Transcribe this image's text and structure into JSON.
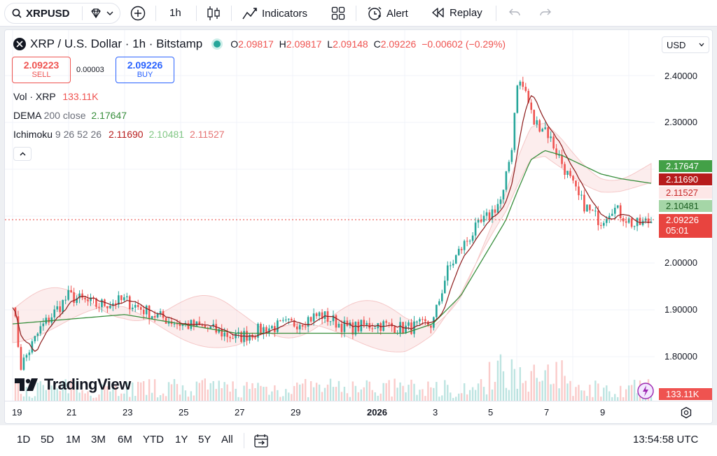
{
  "toolbar": {
    "symbol": "XRPUSD",
    "interval": "1h",
    "indicators_label": "Indicators",
    "alert_label": "Alert",
    "replay_label": "Replay"
  },
  "header": {
    "title": "XRP / U.S. Dollar · 1h · Bitstamp",
    "o_label": "O",
    "o_value": "2.09817",
    "h_label": "H",
    "h_value": "2.09817",
    "l_label": "L",
    "l_value": "2.09148",
    "c_label": "C",
    "c_value": "2.09226",
    "change": "−0.00602 (−0.29%)",
    "currency": "USD"
  },
  "trade": {
    "sell_price": "2.09223",
    "sell_label": "SELL",
    "spread": "0.00003",
    "buy_price": "2.09226",
    "buy_label": "BUY"
  },
  "indicators": {
    "vol_label": "Vol · XRP",
    "vol_value": "133.11K",
    "dema_label": "DEMA",
    "dema_params": "200 close",
    "dema_value": "2.17647",
    "ichi_label": "Ichimoku",
    "ichi_params": "9 26 52 26",
    "ichi_v1": "2.11690",
    "ichi_v2": "2.10481",
    "ichi_v3": "2.11527"
  },
  "watermark": "TradingView",
  "price_axis": {
    "ticks": [
      "2.40000",
      "2.30000",
      "2.00000",
      "1.90000",
      "1.80000"
    ],
    "labels": {
      "dema": "2.17647",
      "ichi1": "2.11690",
      "ichi3": "2.11527",
      "ichi2": "2.10481",
      "last": "2.09226",
      "countdown": "05:01",
      "volume": "133.11K"
    }
  },
  "time_axis": [
    "19",
    "21",
    "23",
    "25",
    "27",
    "29",
    "2026",
    "3",
    "5",
    "7",
    "9"
  ],
  "timeframes": [
    "1D",
    "5D",
    "1M",
    "3M",
    "6M",
    "YTD",
    "1Y",
    "5Y",
    "All"
  ],
  "clock": "13:54:58 UTC",
  "colors": {
    "up": "#26a69a",
    "down": "#ef5350",
    "dema": "#388e3c",
    "conversion": "#8d1b1b",
    "last": "#e8443f",
    "dema_label": "#43a047",
    "ichi1_label": "#b71c1c",
    "ichi3_label": "#ef5350",
    "ichi2_label": "#a5d6a7"
  },
  "chart_data": {
    "type": "candlestick",
    "title": "XRP / U.S. Dollar · 1h · Bitstamp",
    "ylim": [
      1.74,
      2.43
    ],
    "yticks": [
      1.8,
      1.9,
      2.0,
      2.3,
      2.4
    ],
    "x_ticks": [
      "19",
      "21",
      "23",
      "25",
      "27",
      "29",
      "2026",
      "3",
      "5",
      "7",
      "9"
    ],
    "close_series": {
      "x": [
        0,
        0.3,
        1,
        2,
        3,
        4,
        5,
        6,
        7,
        8,
        9,
        10,
        11,
        12,
        13,
        14,
        15,
        15.5,
        16,
        16.5,
        17,
        17.5,
        17.85,
        18,
        18.3,
        18.6,
        19,
        19.4,
        19.8,
        20.2,
        20.6,
        21,
        21.4,
        21.8,
        22.2,
        22.8
      ],
      "y": [
        1.92,
        1.78,
        1.86,
        1.93,
        1.91,
        1.92,
        1.89,
        1.87,
        1.86,
        1.84,
        1.86,
        1.87,
        1.89,
        1.86,
        1.87,
        1.86,
        1.87,
        1.98,
        2.03,
        2.07,
        2.1,
        2.14,
        2.26,
        2.39,
        2.37,
        2.3,
        2.29,
        2.24,
        2.19,
        2.14,
        2.11,
        2.09,
        2.12,
        2.1,
        2.08,
        2.09
      ]
    },
    "dema_series": {
      "x": [
        0,
        2,
        4,
        6,
        8,
        10,
        12,
        14,
        15,
        16,
        17,
        17.6,
        18,
        18.5,
        19,
        19.6,
        20.3,
        21,
        21.7,
        22.8
      ],
      "y": [
        1.87,
        1.88,
        1.89,
        1.87,
        1.85,
        1.85,
        1.85,
        1.85,
        1.87,
        1.93,
        2.03,
        2.09,
        2.15,
        2.22,
        2.24,
        2.23,
        2.21,
        2.19,
        2.18,
        2.17
      ]
    },
    "ohlc_last": {
      "open": 2.09817,
      "high": 2.09817,
      "low": 2.09148,
      "close": 2.09226
    },
    "last_price": 2.09226,
    "volume_last": "133.11K",
    "dema": 2.17647,
    "ichimoku": {
      "conversion": 2.1169,
      "lead1": 2.10481,
      "lead2": 2.11527
    }
  }
}
